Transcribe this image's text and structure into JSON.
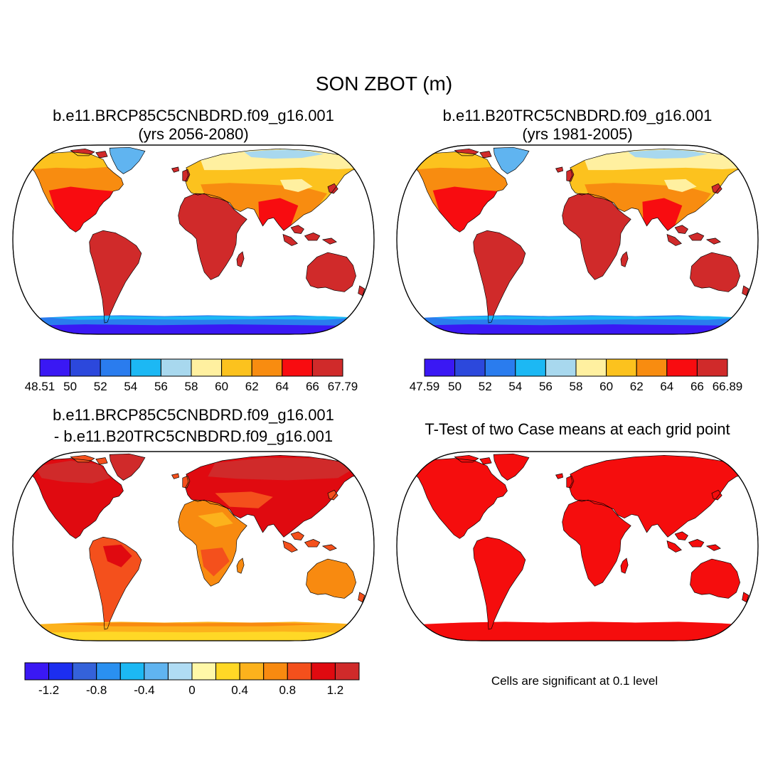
{
  "figure": {
    "title": "SON ZBOT (m)"
  },
  "panels": [
    {
      "id": "future",
      "title_line1": "b.e11.BRCP85C5CNBDRD.f09_g16.001",
      "title_line2": "(yrs 2056-2080)",
      "field": "future",
      "colorbar": {
        "colors": [
          "#3a18f4",
          "#2c48dc",
          "#2a7cee",
          "#1cb8f4",
          "#a8d8ee",
          "#fff0a0",
          "#fcc21e",
          "#f88c10",
          "#f80c10",
          "#d02a2a"
        ],
        "labels": [
          "48.51",
          "50",
          "52",
          "54",
          "56",
          "58",
          "60",
          "62",
          "64",
          "66",
          "67.79"
        ]
      }
    },
    {
      "id": "historical",
      "title_line1": "b.e11.B20TRC5CNBDRD.f09_g16.001",
      "title_line2": "(yrs 1981-2005)",
      "field": "historical",
      "colorbar": {
        "colors": [
          "#3a18f4",
          "#2c48dc",
          "#2a7cee",
          "#1cb8f4",
          "#a8d8ee",
          "#fff0a0",
          "#fcc21e",
          "#f88c10",
          "#f80c10",
          "#d02a2a"
        ],
        "labels": [
          "47.59",
          "50",
          "52",
          "54",
          "56",
          "58",
          "60",
          "62",
          "64",
          "66",
          "66.89"
        ]
      }
    },
    {
      "id": "difference",
      "title_line1": "b.e11.BRCP85C5CNBDRD.f09_g16.001",
      "title_line2": "- b.e11.B20TRC5CNBDRD.f09_g16.001",
      "field": "difference",
      "colorbar": {
        "colors": [
          "#3a18f4",
          "#1c2ef0",
          "#3462da",
          "#2a90f0",
          "#1cb8f4",
          "#60b4f0",
          "#b0dcf4",
          "#fff8a8",
          "#ffd826",
          "#fcb21c",
          "#f88a10",
          "#f4501c",
          "#e00a10",
          "#d02a2a"
        ],
        "labels": [
          "-1.2",
          "-0.8",
          "-0.4",
          "0",
          "0.4",
          "0.8",
          "1.2"
        ]
      }
    },
    {
      "id": "ttest",
      "title_line1": "T-Test of two Case means at each grid point",
      "title_line2": "",
      "field": "ttest",
      "footnote": "Cells are significant at 0.1 level"
    }
  ],
  "map_colors": {
    "ocean": "#ffffff",
    "coastline": "#000000",
    "significant": "#f50d0d"
  }
}
